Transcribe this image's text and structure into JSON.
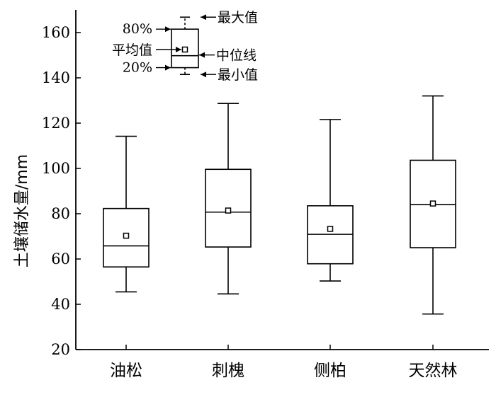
{
  "chart_data": {
    "type": "box",
    "ylabel": "土壤储水量/mm",
    "ylim": [
      20,
      170
    ],
    "yticks": [
      20,
      40,
      60,
      80,
      100,
      120,
      140,
      160
    ],
    "categories": [
      "油松",
      "刺槐",
      "侧柏",
      "天然林"
    ],
    "boxes": [
      {
        "category": "油松",
        "min": 45.5,
        "q20": 56.5,
        "median": 65.8,
        "q80": 82.3,
        "max": 114.2,
        "mean": 70.3
      },
      {
        "category": "刺槐",
        "min": 44.6,
        "q20": 65.3,
        "median": 80.7,
        "q80": 99.6,
        "max": 128.7,
        "mean": 81.4
      },
      {
        "category": "侧柏",
        "min": 50.3,
        "q20": 57.9,
        "median": 70.9,
        "q80": 83.5,
        "max": 121.6,
        "mean": 73.3
      },
      {
        "category": "天然林",
        "min": 35.7,
        "q20": 65.0,
        "median": 84.0,
        "q80": 103.6,
        "max": 132.0,
        "mean": 84.5
      }
    ],
    "legend": {
      "placement": "top-left",
      "labels": {
        "max": "最大值",
        "q80": "80%",
        "mean": "平均值",
        "median": "中位线",
        "q20": "20%",
        "min": "最小值"
      },
      "example": {
        "min": 141.5,
        "q20": 144.5,
        "median": 149.8,
        "q80": 161.5,
        "max": 166.8,
        "mean": 152.5
      }
    },
    "grid": false
  }
}
